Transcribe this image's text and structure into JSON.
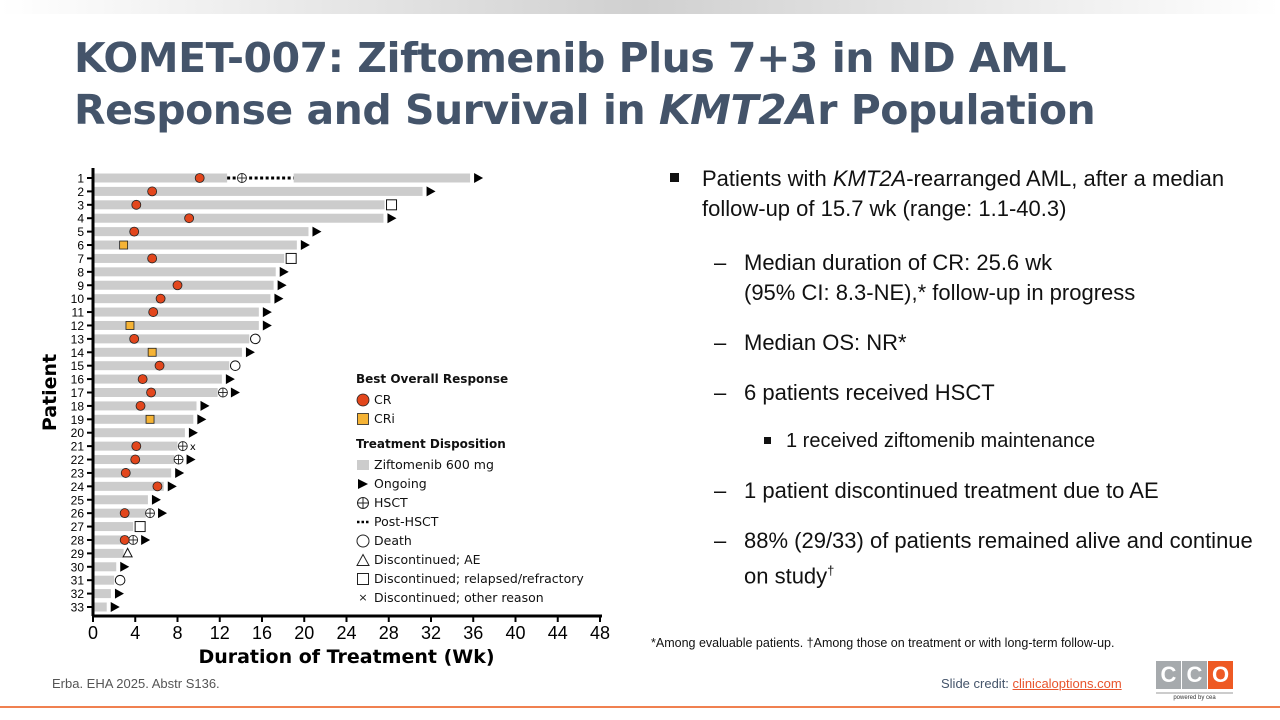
{
  "title_line1": "KOMET-007: Ziftomenib Plus 7+3 in ND AML",
  "title_line2_a": "Response and Survival in ",
  "title_line2_italic": "KMT2A",
  "title_line2_b": "r Population",
  "colors": {
    "title": "#44546a",
    "cr": "#e2461c",
    "cri": "#f5b335",
    "bar": "#cccccc",
    "accent": "#e8542c"
  },
  "chart_data": {
    "type": "swimmer",
    "xlabel": "Duration of Treatment (Wk)",
    "ylabel": "Patient",
    "xlim": [
      0,
      48
    ],
    "xticks": [
      0,
      4,
      8,
      12,
      16,
      20,
      24,
      28,
      32,
      36,
      40,
      44,
      48
    ],
    "patients": [
      {
        "id": "1",
        "end": 35.7,
        "response": {
          "type": "CR",
          "wk": 10.1
        },
        "hsct": 14.1,
        "post_hsct": [
          12.7,
          19.0
        ],
        "end_marker": "ongoing"
      },
      {
        "id": "2",
        "end": 31.2,
        "response": {
          "type": "CR",
          "wk": 5.6
        },
        "end_marker": "ongoing"
      },
      {
        "id": "3",
        "end": 27.6,
        "response": {
          "type": "CR",
          "wk": 4.1
        },
        "end_marker": "relapsed"
      },
      {
        "id": "4",
        "end": 27.5,
        "response": {
          "type": "CR",
          "wk": 9.1
        },
        "end_marker": "ongoing"
      },
      {
        "id": "5",
        "end": 20.4,
        "response": {
          "type": "CR",
          "wk": 3.9
        },
        "end_marker": "ongoing"
      },
      {
        "id": "6",
        "end": 19.3,
        "response": {
          "type": "CRi",
          "wk": 2.9
        },
        "end_marker": "ongoing"
      },
      {
        "id": "7",
        "end": 18.1,
        "response": {
          "type": "CR",
          "wk": 5.6
        },
        "end_marker": "relapsed"
      },
      {
        "id": "8",
        "end": 17.3,
        "end_marker": "ongoing"
      },
      {
        "id": "9",
        "end": 17.1,
        "response": {
          "type": "CR",
          "wk": 8.0
        },
        "end_marker": "ongoing"
      },
      {
        "id": "10",
        "end": 16.8,
        "response": {
          "type": "CR",
          "wk": 6.4
        },
        "end_marker": "ongoing"
      },
      {
        "id": "11",
        "end": 15.7,
        "response": {
          "type": "CR",
          "wk": 5.7
        },
        "end_marker": "ongoing"
      },
      {
        "id": "12",
        "end": 15.7,
        "response": {
          "type": "CRi",
          "wk": 3.5
        },
        "end_marker": "ongoing"
      },
      {
        "id": "13",
        "end": 14.8,
        "response": {
          "type": "CR",
          "wk": 3.9
        },
        "end_marker": "death"
      },
      {
        "id": "14",
        "end": 14.1,
        "response": {
          "type": "CRi",
          "wk": 5.6
        },
        "end_marker": "ongoing"
      },
      {
        "id": "15",
        "end": 12.9,
        "response": {
          "type": "CR",
          "wk": 6.3
        },
        "end_marker": "death"
      },
      {
        "id": "16",
        "end": 12.2,
        "response": {
          "type": "CR",
          "wk": 4.7
        },
        "end_marker": "ongoing"
      },
      {
        "id": "17",
        "end": 11.8,
        "response": {
          "type": "CR",
          "wk": 5.5
        },
        "hsct": 12.3,
        "end_marker": "ongoing"
      },
      {
        "id": "18",
        "end": 9.8,
        "response": {
          "type": "CR",
          "wk": 4.5
        },
        "end_marker": "ongoing"
      },
      {
        "id": "19",
        "end": 9.5,
        "response": {
          "type": "CRi",
          "wk": 5.4
        },
        "end_marker": "ongoing"
      },
      {
        "id": "20",
        "end": 8.7,
        "end_marker": "ongoing"
      },
      {
        "id": "21",
        "end": 8.0,
        "response": {
          "type": "CR",
          "wk": 4.1
        },
        "hsct": 8.5,
        "end_marker": "other"
      },
      {
        "id": "22",
        "end": 7.7,
        "response": {
          "type": "CR",
          "wk": 4.0
        },
        "hsct": 8.1,
        "end_marker": "ongoing"
      },
      {
        "id": "23",
        "end": 7.4,
        "response": {
          "type": "CR",
          "wk": 3.1
        },
        "end_marker": "ongoing"
      },
      {
        "id": "24",
        "end": 6.7,
        "response": {
          "type": "CR",
          "wk": 6.1
        },
        "end_marker": "ongoing"
      },
      {
        "id": "25",
        "end": 5.2,
        "end_marker": "ongoing"
      },
      {
        "id": "26",
        "end": 5.0,
        "response": {
          "type": "CR",
          "wk": 3.0
        },
        "hsct": 5.4,
        "end_marker": "ongoing"
      },
      {
        "id": "27",
        "end": 3.8,
        "end_marker": "relapsed"
      },
      {
        "id": "28",
        "end": 3.3,
        "response": {
          "type": "CR",
          "wk": 3.0
        },
        "hsct": 3.8,
        "end_marker": "ongoing"
      },
      {
        "id": "29",
        "end": 2.9,
        "end_marker": "ae"
      },
      {
        "id": "30",
        "end": 2.2,
        "end_marker": "ongoing"
      },
      {
        "id": "31",
        "end": 2.0,
        "end_marker": "death"
      },
      {
        "id": "32",
        "end": 1.7,
        "end_marker": "ongoing"
      },
      {
        "id": "33",
        "end": 1.3,
        "end_marker": "ongoing"
      }
    ],
    "legend": {
      "response_title": "Best Overall Response",
      "cr": "CR",
      "cri": "CRi",
      "disposition_title": "Treatment Disposition",
      "ziftomenib": "Ziftomenib 600 mg",
      "ongoing": "Ongoing",
      "hsct": "HSCT",
      "post_hsct": "Post-HSCT",
      "death": "Death",
      "ae": "Discontinued; AE",
      "relapsed": "Discontinued; relapsed/refractory",
      "other": "Discontinued; other reason"
    }
  },
  "bullets": {
    "b1_a": "Patients with ",
    "b1_italic": "KMT2A",
    "b1_b": "-rearranged AML, after a median follow-up of 15.7 wk (range: 1.1-40.3)",
    "b2": "Median duration of CR: 25.6 wk",
    "b2_line2": "(95% CI: 8.3-NE),* follow-up in progress",
    "b3": "Median OS: NR*",
    "b4": "6 patients received HSCT",
    "b4_sub": "1 received ziftomenib maintenance",
    "b5": "1 patient discontinued treatment due to AE",
    "b6": "88% (29/33) of patients remained alive and continue on study",
    "b6_sup": "†"
  },
  "footnote": "*Among evaluable patients. †Among those on treatment or with long-term follow-up.",
  "citation": "Erba. EHA 2025. Abstr S136.",
  "credit_label": "Slide credit: ",
  "credit_link": "clinicaloptions.com",
  "logo": {
    "letters": [
      "C",
      "C",
      "O"
    ],
    "tagline": "powered by cea"
  }
}
